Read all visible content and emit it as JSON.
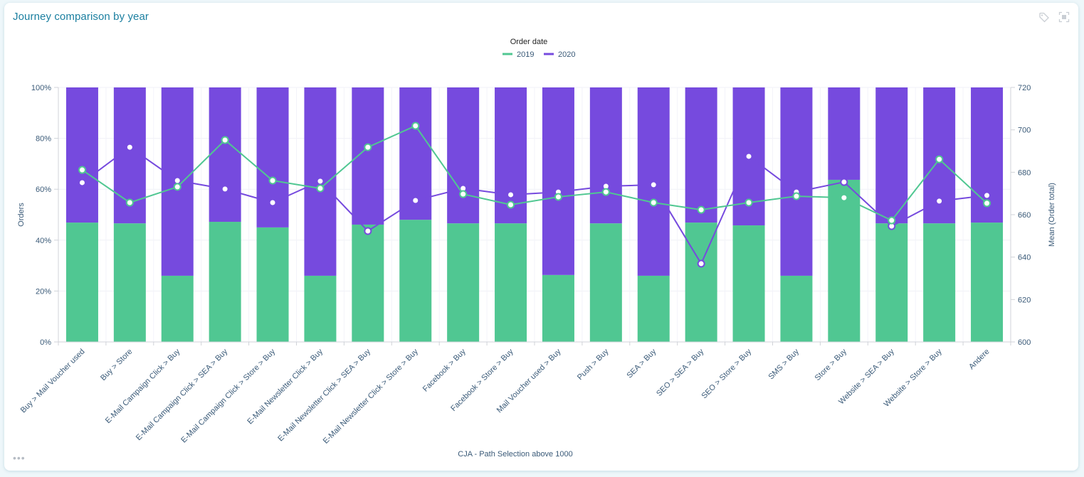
{
  "widget": {
    "title": "Journey comparison by year",
    "icons": [
      "tag-icon",
      "fullscreen-icon"
    ],
    "more_label": "•••"
  },
  "colors": {
    "series_2019": "#50c792",
    "series_2020": "#764ade",
    "title": "#1b7fa0",
    "axis_text": "#3a5a78"
  },
  "chart_data": {
    "type": "bar",
    "subtype": "stacked-percent-bar-with-lines",
    "title": "Journey comparison by year",
    "xlabel": "CJA - Path Selection above 1000",
    "ylabel": "Orders",
    "ylabel_right": "Mean (Order total)",
    "ylim": [
      0,
      100
    ],
    "ylim_right": [
      600,
      720
    ],
    "yticks": [
      "0%",
      "20%",
      "40%",
      "60%",
      "80%",
      "100%"
    ],
    "yticks_right": [
      "600",
      "620",
      "640",
      "660",
      "680",
      "700",
      "720"
    ],
    "grid": true,
    "legend": {
      "title": "Order date",
      "position": "top-center",
      "entries": [
        "2019",
        "2020"
      ]
    },
    "categories": [
      "Buy > Mail Voucher used",
      "Buy > Store",
      "E-Mail Campaign Click > Buy",
      "E-Mail Campaign Click > SEA > Buy",
      "E-Mail Campaign Click > Store > Buy",
      "E-Mail Newsletter Click > Buy",
      "E-Mail Newsletter Click > SEA > Buy",
      "E-Mail Newsletter Click > Store > Buy",
      "Facebook > Buy",
      "Facebook > Store > Buy",
      "Mail Voucher used > Buy",
      "Push > Buy",
      "SEA > Buy",
      "SEO > SEA > Buy",
      "SEO > Store > Buy",
      "SMS > Buy",
      "Store > Buy",
      "Website > SEA > Buy",
      "Website > Store > Buy",
      "Andere"
    ],
    "series": [
      {
        "name": "2019",
        "kind": "bar",
        "axis": "left",
        "values": [
          46.9,
          46.6,
          26.0,
          47.2,
          45.0,
          26.0,
          46.1,
          48.0,
          46.6,
          46.6,
          26.3,
          46.6,
          26.0,
          46.9,
          45.8,
          26.0,
          63.7,
          46.6,
          46.6,
          46.9
        ]
      },
      {
        "name": "2020",
        "kind": "bar",
        "axis": "left",
        "values": [
          53.1,
          53.4,
          74.0,
          52.8,
          55.0,
          74.0,
          53.9,
          52.0,
          53.4,
          53.4,
          73.7,
          53.4,
          74.0,
          53.1,
          54.2,
          74.0,
          36.3,
          53.4,
          53.4,
          53.1
        ]
      },
      {
        "name": "2019",
        "kind": "line",
        "axis": "right",
        "values": [
          681.1,
          665.7,
          673.1,
          695.2,
          676.1,
          672.4,
          691.8,
          701.9,
          669.7,
          664.7,
          668.4,
          670.7,
          665.7,
          662.3,
          665.7,
          668.7,
          668.0,
          657.3,
          686.1,
          665.4
        ]
      },
      {
        "name": "2020",
        "kind": "line",
        "axis": "right",
        "values": [
          675.1,
          691.8,
          676.1,
          672.1,
          665.7,
          675.8,
          652.3,
          666.7,
          672.4,
          669.4,
          670.7,
          673.4,
          674.1,
          636.9,
          687.5,
          670.7,
          675.4,
          654.6,
          666.4,
          669.1
        ]
      }
    ]
  }
}
